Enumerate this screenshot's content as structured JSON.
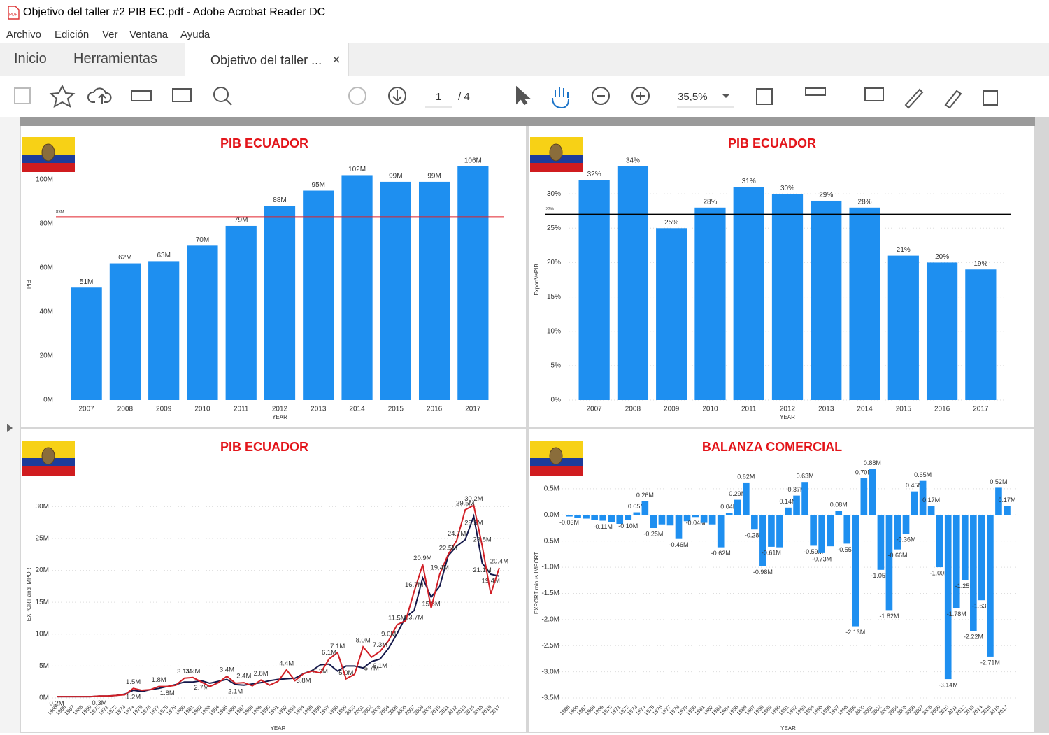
{
  "ui": {
    "title": "Objetivo del taller #2 PIB EC.pdf - Adobe Acrobat Reader DC",
    "menu": [
      "Archivo",
      "Edición",
      "Ver",
      "Ventana",
      "Ayuda"
    ],
    "tabs": [
      "Inicio",
      "Herramientas",
      "Objetivo del taller ..."
    ],
    "toolbar": {
      "page": "1",
      "page_total": "/ 4",
      "zoom": "35,5%"
    }
  },
  "chart_data": [
    {
      "type": "bar",
      "title": "PIB ECUADOR",
      "x_label": "YEAR",
      "y_label": "PIB",
      "color": "#1e8ff0",
      "grid": false,
      "categories": [
        "2007",
        "2008",
        "2009",
        "2010",
        "2011",
        "2012",
        "2013",
        "2014",
        "2015",
        "2016",
        "2017"
      ],
      "values": [
        51,
        62,
        63,
        70,
        79,
        88,
        95,
        102,
        99,
        99,
        106
      ],
      "value_labels": [
        "51M",
        "62M",
        "63M",
        "70M",
        "79M",
        "88M",
        "95M",
        "102M",
        "99M",
        "99M",
        "106M"
      ],
      "ylim": [
        0,
        105
      ],
      "yticks": [
        {
          "value": 0,
          "label": "0M"
        },
        {
          "value": 20,
          "label": "20M"
        },
        {
          "value": 40,
          "label": "40M"
        },
        {
          "value": 60,
          "label": "60M"
        },
        {
          "value": 80,
          "label": "80M"
        },
        {
          "value": 100,
          "label": "100M"
        }
      ],
      "reference": {
        "value": 83,
        "label": "83M",
        "color": "#e0202a"
      }
    },
    {
      "type": "bar",
      "title": "PIB ECUADOR",
      "x_label": "YEAR",
      "y_label": "ExportVsPIB",
      "color": "#1e8ff0",
      "grid": true,
      "categories": [
        "2007",
        "2008",
        "2009",
        "2010",
        "2011",
        "2012",
        "2013",
        "2014",
        "2015",
        "2016",
        "2017"
      ],
      "values": [
        32,
        34,
        25,
        28,
        31,
        30,
        29,
        28,
        21,
        20,
        19
      ],
      "value_labels": [
        "32%",
        "34%",
        "25%",
        "28%",
        "31%",
        "30%",
        "29%",
        "28%",
        "21%",
        "20%",
        "19%"
      ],
      "ylim": [
        0,
        35
      ],
      "yticks": [
        {
          "value": 0,
          "label": "0%"
        },
        {
          "value": 5,
          "label": "5%"
        },
        {
          "value": 10,
          "label": "10%"
        },
        {
          "value": 15,
          "label": "15%"
        },
        {
          "value": 20,
          "label": "20%"
        },
        {
          "value": 25,
          "label": "25%"
        },
        {
          "value": 30,
          "label": "30%"
        }
      ],
      "reference": {
        "value": 27,
        "label": "27%",
        "color": "#000000"
      }
    },
    {
      "type": "line",
      "title": "PIB ECUADOR",
      "x_label": "YEAR",
      "y_label": "EXPORT and IMPORT",
      "grid": true,
      "categories": [
        "1965",
        "1966",
        "1967",
        "1968",
        "1969",
        "1970",
        "1971",
        "1972",
        "1973",
        "1974",
        "1975",
        "1976",
        "1977",
        "1978",
        "1979",
        "1980",
        "1981",
        "1982",
        "1983",
        "1984",
        "1985",
        "1986",
        "1987",
        "1988",
        "1989",
        "1990",
        "1991",
        "1992",
        "1993",
        "1994",
        "1995",
        "1996",
        "1997",
        "1998",
        "1999",
        "2000",
        "2001",
        "2002",
        "2003",
        "2004",
        "2005",
        "2006",
        "2007",
        "2008",
        "2009",
        "2010",
        "2011",
        "2012",
        "2013",
        "2014",
        "2015",
        "2016",
        "2017"
      ],
      "series": [
        {
          "color": "#14184a",
          "values": [
            0.2,
            0.2,
            0.2,
            0.2,
            0.2,
            0.3,
            0.3,
            0.4,
            0.6,
            1.2,
            1.0,
            1.3,
            1.5,
            1.8,
            2.1,
            2.5,
            2.5,
            2.7,
            2.3,
            2.6,
            2.9,
            2.1,
            2.0,
            2.2,
            2.4,
            2.7,
            2.9,
            3.0,
            3.1,
            3.8,
            4.3,
            5.2,
            5.3,
            4.2,
            5.0,
            5.0,
            4.7,
            5.7,
            6.1,
            7.8,
            10.1,
            12.7,
            13.7,
            18.8,
            15.8,
            17.5,
            22.3,
            23.8,
            24.8,
            28.5,
            21.1,
            19.4,
            19.1
          ],
          "value_labels": [
            "0.2M",
            null,
            null,
            null,
            null,
            "0.3M",
            null,
            null,
            null,
            "1.2M",
            null,
            null,
            null,
            "1.8M",
            null,
            null,
            null,
            "2.7M",
            null,
            null,
            null,
            "2.1M",
            null,
            null,
            null,
            null,
            null,
            null,
            null,
            "3.8M",
            null,
            "5.2M",
            null,
            null,
            "5.0M",
            null,
            null,
            "5.7M",
            "6.1M",
            null,
            null,
            null,
            "13.7M",
            null,
            "15.8M",
            null,
            null,
            null,
            null,
            "28.5M",
            "21.1M",
            "19.4M",
            null
          ]
        },
        {
          "color": "#d11f26",
          "values": [
            0.2,
            0.2,
            0.2,
            0.2,
            0.2,
            0.3,
            0.3,
            0.4,
            0.5,
            1.5,
            1.2,
            1.3,
            1.8,
            1.8,
            2.0,
            3.1,
            3.2,
            2.5,
            1.8,
            2.4,
            3.4,
            2.3,
            2.4,
            1.9,
            2.8,
            2.0,
            2.6,
            4.4,
            2.7,
            3.8,
            4.2,
            3.9,
            6.1,
            7.1,
            3.0,
            3.7,
            8.0,
            6.4,
            7.3,
            9.0,
            11.5,
            12.1,
            16.7,
            20.9,
            14.1,
            19.4,
            22.5,
            24.7,
            29.5,
            30.2,
            23.8,
            16.3,
            20.4
          ],
          "value_labels": [
            null,
            null,
            null,
            null,
            null,
            null,
            null,
            null,
            null,
            "1.5M",
            null,
            null,
            "1.8M",
            null,
            null,
            "3.1M",
            "3.2M",
            null,
            null,
            null,
            "3.4M",
            null,
            "2.4M",
            null,
            "2.8M",
            null,
            null,
            "4.4M",
            null,
            null,
            null,
            null,
            "6.1M",
            "7.1M",
            null,
            null,
            "8.0M",
            null,
            "7.3M",
            "9.0M",
            "11.5M",
            null,
            "16.7M",
            "20.9M",
            null,
            "19.4M",
            "22.5M",
            "24.7M",
            "29.5M",
            "30.2M",
            "23.8M",
            null,
            "20.4M"
          ]
        }
      ],
      "ylim": [
        0,
        33
      ],
      "yticks": [
        {
          "value": 0,
          "label": "0M"
        },
        {
          "value": 5,
          "label": "5M"
        },
        {
          "value": 10,
          "label": "10M"
        },
        {
          "value": 15,
          "label": "15M"
        },
        {
          "value": 20,
          "label": "20M"
        },
        {
          "value": 25,
          "label": "25M"
        },
        {
          "value": 30,
          "label": "30M"
        }
      ]
    },
    {
      "type": "bar",
      "title": "BALANZA COMERCIAL",
      "x_label": "YEAR",
      "y_label": "EXPORT minus IMPORT",
      "color": "#1e8ff0",
      "grid": true,
      "categories": [
        "1965",
        "1966",
        "1967",
        "1968",
        "1969",
        "1970",
        "1971",
        "1972",
        "1973",
        "1974",
        "1975",
        "1976",
        "1977",
        "1978",
        "1979",
        "1980",
        "1981",
        "1982",
        "1983",
        "1984",
        "1985",
        "1986",
        "1987",
        "1988",
        "1989",
        "1990",
        "1991",
        "1992",
        "1993",
        "1994",
        "1995",
        "1996",
        "1997",
        "1998",
        "1999",
        "2000",
        "2001",
        "2002",
        "2003",
        "2004",
        "2005",
        "2006",
        "2007",
        "2008",
        "2009",
        "2010",
        "2011",
        "2012",
        "2013",
        "2014",
        "2015",
        "2016",
        "2017"
      ],
      "values": [
        -0.03,
        -0.05,
        -0.07,
        -0.09,
        -0.11,
        -0.13,
        -0.17,
        -0.1,
        0.05,
        0.26,
        -0.25,
        -0.18,
        -0.2,
        -0.46,
        -0.12,
        -0.04,
        -0.15,
        -0.18,
        -0.62,
        0.04,
        0.29,
        0.62,
        -0.28,
        -0.98,
        -0.61,
        -0.62,
        0.14,
        0.37,
        0.63,
        -0.59,
        -0.73,
        -0.6,
        0.08,
        -0.55,
        -2.13,
        0.7,
        0.88,
        -1.05,
        -1.82,
        -0.66,
        -0.36,
        0.45,
        0.65,
        0.17,
        -1.0,
        -3.14,
        -1.78,
        -1.25,
        -2.22,
        -1.63,
        -2.71,
        0.52,
        0.17
      ],
      "value_labels": [
        "-0.03M",
        null,
        null,
        null,
        "-0.11M",
        null,
        null,
        "-0.10M",
        "0.05M",
        "0.26M",
        "-0.25M",
        null,
        null,
        "-0.46M",
        null,
        "-0.04M",
        null,
        null,
        "-0.62M",
        "0.04M",
        "0.29M",
        "0.62M",
        "-0.28M",
        "-0.98M",
        "-0.61M",
        null,
        "0.14M",
        "0.37M",
        "0.63M",
        "-0.59M",
        "-0.73M",
        null,
        "0.08M",
        "-0.55M",
        "-2.13M",
        "0.70M",
        "0.88M",
        "-1.05M",
        "-1.82M",
        "-0.66M",
        "-0.36M",
        "0.45M",
        "0.65M",
        "0.17M",
        "-1.00M",
        "-3.14M",
        "-1.78M",
        "-1.25M",
        "-2.22M",
        "-1.63M",
        "-2.71M",
        "0.52M",
        "0.17M"
      ],
      "ylim": [
        -3.5,
        0.9
      ],
      "yticks": [
        {
          "value": 0.5,
          "label": "0.5M"
        },
        {
          "value": 0,
          "label": "0.0M"
        },
        {
          "value": -0.5,
          "label": "-0.5M"
        },
        {
          "value": -1,
          "label": "-1.0M"
        },
        {
          "value": -1.5,
          "label": "-1.5M"
        },
        {
          "value": -2,
          "label": "-2.0M"
        },
        {
          "value": -2.5,
          "label": "-2.5M"
        },
        {
          "value": -3,
          "label": "-3.0M"
        },
        {
          "value": -3.5,
          "label": "-3.5M"
        }
      ]
    }
  ]
}
